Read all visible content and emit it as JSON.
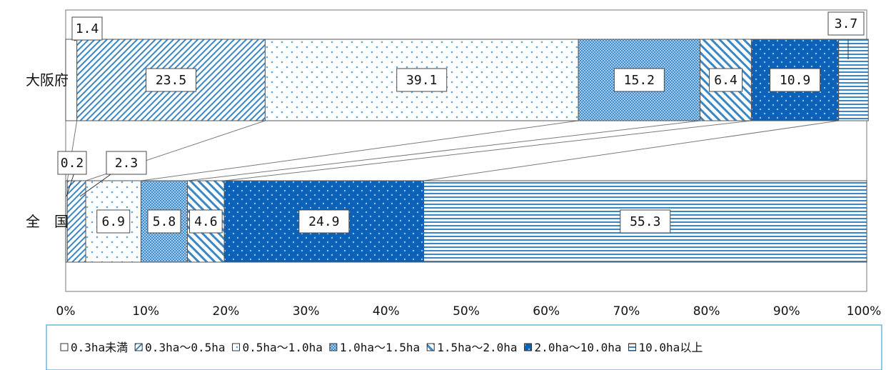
{
  "chart_data": {
    "type": "bar",
    "orientation": "horizontal",
    "stacked": "percent",
    "categories": [
      "大阪府",
      "全　国"
    ],
    "series": [
      {
        "name": "0.3ha未満",
        "values": [
          1.4,
          0.2
        ],
        "labels": [
          "1.4",
          "0.2"
        ],
        "color": "#ffffff",
        "pattern": "none"
      },
      {
        "name": "0.3ha～0.5ha",
        "values": [
          23.5,
          2.3
        ],
        "labels": [
          "23.5",
          "2.3"
        ],
        "color": "#3a87c8",
        "pattern": "diag-dense"
      },
      {
        "name": "0.5ha～1.0ha",
        "values": [
          39.1,
          6.9
        ],
        "labels": [
          "39.1",
          "6.9"
        ],
        "color": "#5ca6e0",
        "pattern": "sparse-dots"
      },
      {
        "name": "1.0ha～1.5ha",
        "values": [
          15.2,
          5.8
        ],
        "labels": [
          "15.2",
          "5.8"
        ],
        "color": "#7fb6de",
        "pattern": "checker"
      },
      {
        "name": "1.5ha～2.0ha",
        "values": [
          6.4,
          4.6
        ],
        "labels": [
          "6.4",
          "4.6"
        ],
        "color": "#3a87c8",
        "pattern": "diag-wide"
      },
      {
        "name": "2.0ha～10.0ha",
        "values": [
          10.9,
          24.9
        ],
        "labels": [
          "10.9",
          "24.9"
        ],
        "color": "#0b62b8",
        "pattern": "solid-dots"
      },
      {
        "name": "10.0ha以上",
        "values": [
          3.7,
          55.3
        ],
        "labels": [
          "3.7",
          "55.3"
        ],
        "color": "#3a87c8",
        "pattern": "hstripes"
      }
    ],
    "x_ticks": [
      "0%",
      "10%",
      "20%",
      "30%",
      "40%",
      "50%",
      "60%",
      "70%",
      "80%",
      "90%",
      "100%"
    ],
    "xlim": [
      0,
      100
    ],
    "legend_position": "bottom",
    "grid": false,
    "connector_lines": true
  }
}
